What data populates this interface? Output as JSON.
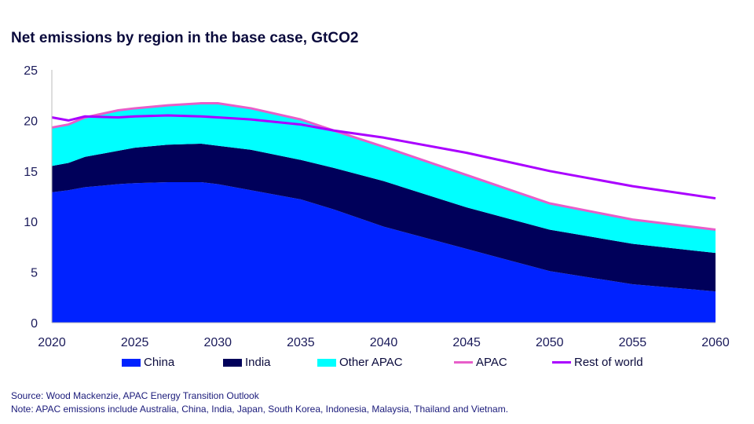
{
  "title": "Net emissions by region in the base case, GtCO2",
  "source": "Source: Wood Mackenzie, APAC Energy Transition Outlook",
  "note": "Note: APAC emissions include Australia, China, India, Japan, South Korea, Indonesia, Malaysia, Thailand and Vietnam.",
  "chart_data": {
    "type": "area",
    "title": "Net emissions by region in the base case, GtCO2",
    "xlim": [
      2020,
      2060
    ],
    "ylim": [
      0,
      25
    ],
    "xticks": [
      "2020",
      "2025",
      "2030",
      "2035",
      "2040",
      "2045",
      "2050",
      "2055",
      "2060"
    ],
    "yticks": [
      "0",
      "5",
      "10",
      "15",
      "20",
      "25"
    ],
    "grid": false,
    "legend": "bottom",
    "x": [
      2020,
      2021,
      2022,
      2024,
      2025,
      2027,
      2029,
      2030,
      2032,
      2035,
      2037,
      2040,
      2045,
      2050,
      2055,
      2060
    ],
    "stacked_series": [
      {
        "name": "China",
        "color": "#0022ff",
        "values": [
          12.9,
          13.1,
          13.4,
          13.7,
          13.8,
          13.9,
          13.9,
          13.7,
          13.1,
          12.2,
          11.2,
          9.5,
          7.3,
          5.1,
          3.8,
          3.1
        ]
      },
      {
        "name": "India",
        "color": "#00005a",
        "values": [
          2.6,
          2.7,
          3.0,
          3.3,
          3.5,
          3.7,
          3.8,
          3.8,
          4.0,
          3.9,
          4.1,
          4.5,
          4.1,
          4.1,
          4.0,
          3.8
        ]
      },
      {
        "name": "Other APAC",
        "color": "#00ffff",
        "values": [
          3.8,
          3.8,
          3.9,
          4.0,
          3.9,
          3.9,
          4.0,
          4.2,
          4.1,
          4.0,
          3.7,
          3.4,
          3.2,
          2.6,
          2.4,
          2.3
        ]
      }
    ],
    "line_series": [
      {
        "name": "APAC",
        "color": "#e85ec9",
        "values": [
          19.3,
          19.6,
          20.3,
          21.0,
          21.2,
          21.5,
          21.7,
          21.7,
          21.2,
          20.1,
          19.0,
          17.4,
          14.6,
          11.8,
          10.2,
          9.2
        ]
      },
      {
        "name": "Rest of world",
        "color": "#aa00ff",
        "values": [
          20.3,
          20.0,
          20.4,
          20.3,
          20.4,
          20.5,
          20.4,
          20.3,
          20.1,
          19.6,
          19.0,
          18.3,
          16.8,
          15.0,
          13.5,
          12.3
        ]
      }
    ]
  }
}
